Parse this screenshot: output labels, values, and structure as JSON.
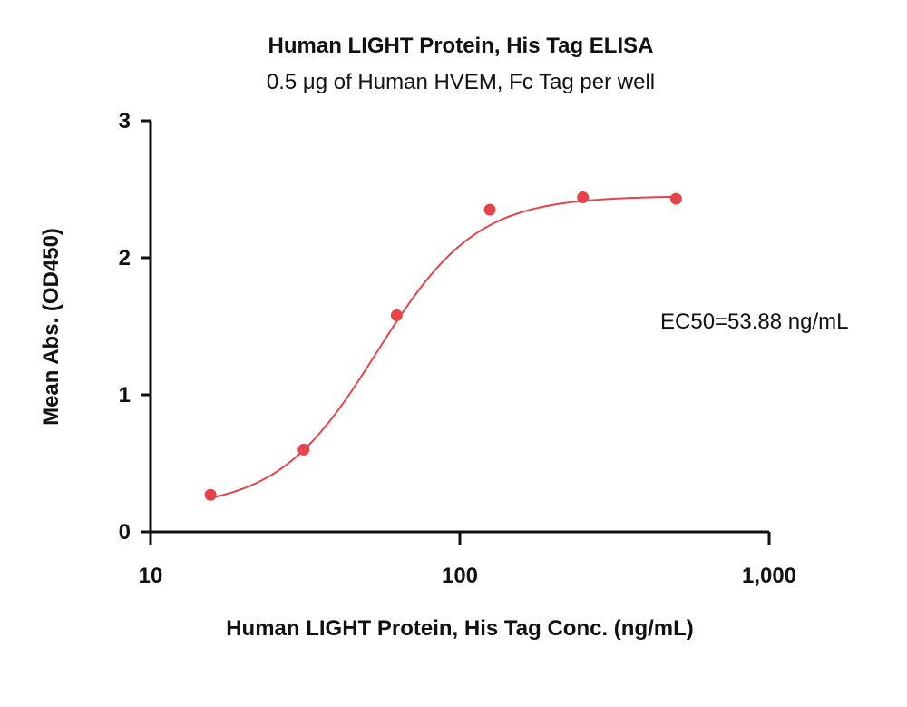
{
  "chart_data": {
    "type": "scatter",
    "title": "Human LIGHT Protein, His Tag ELISA",
    "subtitle": "0.5 μg of Human HVEM, Fc Tag per well",
    "xlabel": "Human LIGHT Protein, His Tag Conc. (ng/mL)",
    "ylabel": "Mean Abs. (OD450)",
    "x_scale": "log",
    "xlim": [
      10,
      1000
    ],
    "ylim": [
      0,
      3
    ],
    "x_ticks": [
      10,
      100,
      1000
    ],
    "x_tick_labels": [
      "10",
      "100",
      "1,000"
    ],
    "y_ticks": [
      0,
      1,
      2,
      3
    ],
    "y_tick_labels": [
      "0",
      "1",
      "2",
      "3"
    ],
    "grid": false,
    "series": [
      {
        "x": [
          15.63,
          31.25,
          62.5,
          125,
          250,
          500
        ],
        "y": [
          0.27,
          0.6,
          1.58,
          2.35,
          2.44,
          2.43
        ],
        "color": "#e8434b",
        "fit": "4PL sigmoid curve"
      }
    ],
    "annotations": [
      {
        "text": "EC50=53.88 ng/mL"
      }
    ]
  }
}
